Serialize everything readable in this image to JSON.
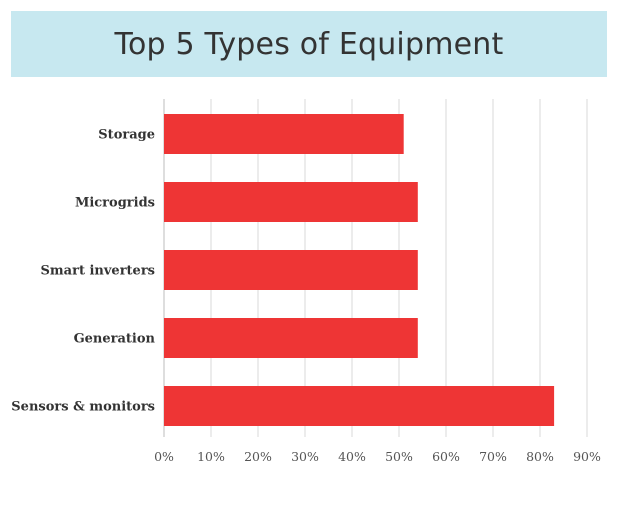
{
  "chart_data": {
    "type": "bar",
    "orientation": "horizontal",
    "title": "Top 5 Types of Equipment",
    "categories": [
      "Storage",
      "Microgrids",
      "Smart inverters",
      "Generation",
      "Sensors & monitors"
    ],
    "values": [
      51,
      54,
      54,
      54,
      83
    ],
    "xlim": [
      0,
      90
    ],
    "xticks": [
      "0%",
      "10%",
      "20%",
      "30%",
      "40%",
      "50%",
      "60%",
      "70%",
      "80%",
      "90%"
    ],
    "grid": true,
    "bar_color": "#ee3535",
    "title_background": "#c7e8f0"
  }
}
